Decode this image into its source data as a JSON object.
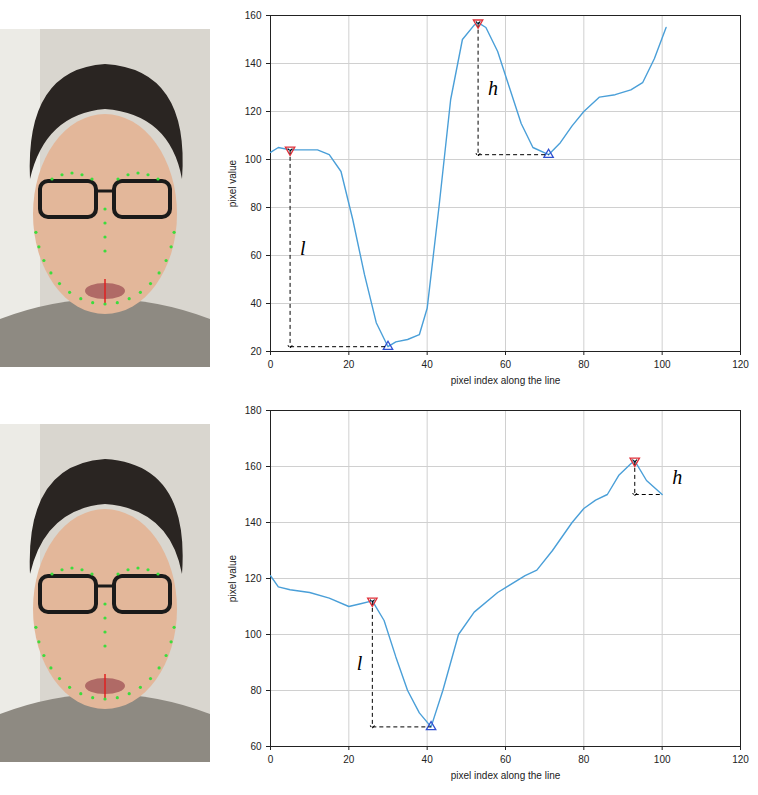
{
  "chart_data": [
    {
      "type": "line",
      "x_label": "pixel index along the line",
      "y_label": "pixel value",
      "xlim": [
        0,
        120
      ],
      "xticks": [
        0,
        20,
        40,
        60,
        80,
        100,
        120
      ],
      "ylim": [
        20,
        160
      ],
      "yticks": [
        20,
        40,
        60,
        80,
        100,
        120,
        140,
        160
      ],
      "grid": true,
      "x": [
        0,
        2,
        5,
        8,
        12,
        15,
        18,
        21,
        24,
        27,
        30,
        32,
        35,
        38,
        40,
        43,
        46,
        49,
        52,
        53,
        55,
        58,
        61,
        64,
        67,
        71,
        74,
        77,
        80,
        84,
        88,
        92,
        95,
        98,
        101
      ],
      "series": [
        {
          "color": "#4a9fd8",
          "values": [
            103,
            105,
            104,
            104,
            104,
            102,
            95,
            75,
            52,
            32,
            22,
            24,
            25,
            27,
            38,
            80,
            125,
            150,
            156,
            157,
            155,
            145,
            130,
            115,
            105,
            102,
            107,
            114,
            120,
            126,
            127,
            129,
            132,
            142,
            155
          ]
        }
      ],
      "peaks": {
        "x": [
          5,
          53
        ],
        "y": [
          104,
          157
        ],
        "color": "#e0303a",
        "marker": "triangle-down"
      },
      "troughs": {
        "x": [
          30,
          71
        ],
        "y": [
          22,
          102
        ],
        "color": "#3050d0",
        "marker": "triangle-up"
      },
      "annotations": [
        {
          "text": "l",
          "x": 5,
          "y_from": 104,
          "y_to": 22,
          "x_to": 30
        },
        {
          "text": "h",
          "x": 53,
          "y_from": 157,
          "y_to": 102,
          "x_to": 71
        }
      ]
    },
    {
      "type": "line",
      "x_label": "pixel index along the line",
      "y_label": "pixel value",
      "xlim": [
        0,
        120
      ],
      "xticks": [
        0,
        20,
        40,
        60,
        80,
        100,
        120
      ],
      "ylim": [
        60,
        180
      ],
      "yticks": [
        60,
        80,
        100,
        120,
        140,
        160,
        180
      ],
      "grid": true,
      "x": [
        0,
        2,
        5,
        10,
        15,
        20,
        23,
        26,
        29,
        32,
        35,
        38,
        41,
        44,
        48,
        52,
        58,
        65,
        68,
        72,
        77,
        80,
        83,
        86,
        89,
        92,
        93,
        96,
        100
      ],
      "series": [
        {
          "color": "#4a9fd8",
          "values": [
            121,
            117,
            116,
            115,
            113,
            110,
            111,
            112,
            105,
            92,
            80,
            72,
            67,
            80,
            100,
            108,
            115,
            121,
            123,
            130,
            140,
            145,
            148,
            150,
            157,
            161,
            162,
            155,
            150
          ]
        }
      ],
      "peaks": {
        "x": [
          26,
          93
        ],
        "y": [
          112,
          162
        ],
        "color": "#e0303a",
        "marker": "triangle-down"
      },
      "troughs": {
        "x": [
          41
        ],
        "y": [
          67
        ],
        "color": "#3050d0",
        "marker": "triangle-up"
      },
      "annotations": [
        {
          "text": "l",
          "x": 26,
          "y_from": 112,
          "y_to": 67,
          "x_to": 41
        },
        {
          "text": "h",
          "x": 93,
          "y_from": 162,
          "y_to": 150,
          "x_to": 100
        }
      ]
    }
  ]
}
